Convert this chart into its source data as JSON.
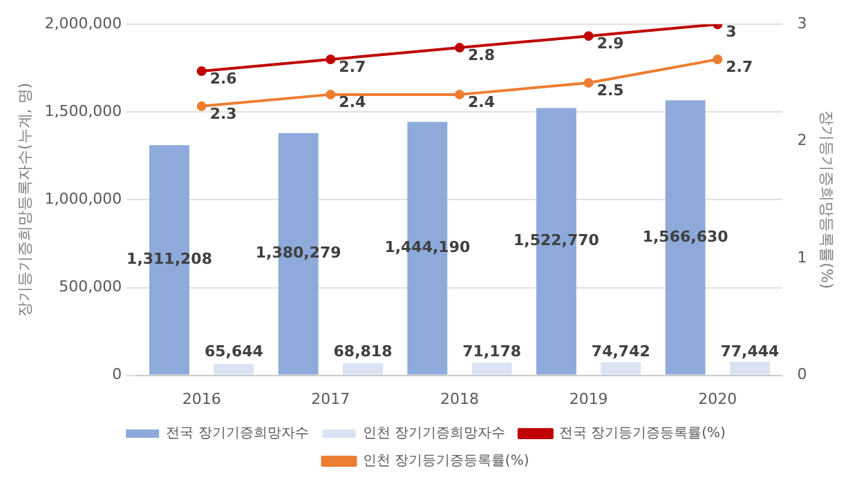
{
  "chart_data": {
    "type": "bar",
    "categories": [
      "2016",
      "2017",
      "2018",
      "2019",
      "2020"
    ],
    "ylabel": "장기등기증희망등록자수(누계, 명)",
    "y2label": "장기등기증희망등록률(%)",
    "series": [
      {
        "name": "전국 장기기증희망자수",
        "color": "#8eaadb",
        "values": [
          1311208,
          1380279,
          1444190,
          1522770,
          1566630
        ],
        "value_labels": [
          "1,311,208",
          "1,380,279",
          "1,444,190",
          "1,522,770",
          "1,566,630"
        ]
      },
      {
        "name": "인천 장기기증희망자수",
        "color": "#dae3f3",
        "values": [
          65644,
          68818,
          71178,
          74742,
          77444
        ],
        "value_labels": [
          "65,644",
          "68,818",
          "71,178",
          "74,742",
          "77,444"
        ]
      },
      {
        "name": "전국 장기등기증등록률(%)",
        "type": "line",
        "axis": "y2",
        "color": "#c00000",
        "values": [
          2.6,
          2.7,
          2.8,
          2.9,
          3
        ]
      },
      {
        "name": "인천 장기등기증등록률(%)",
        "type": "line",
        "axis": "y2",
        "color": "#ed7d31",
        "values": [
          2.3,
          2.4,
          2.4,
          2.5,
          2.7
        ]
      }
    ],
    "ylim": [
      0,
      2000000
    ],
    "yticks": [
      0,
      {
        "value": 500000,
        "label": "500,000"
      },
      {
        "value": 1000000,
        "label": "1,000,000"
      },
      {
        "value": 1500000,
        "label": "1,500,000"
      },
      {
        "value": 2000000,
        "label": "2,000,000"
      }
    ],
    "y2lim": [
      0,
      3
    ],
    "y2ticks": [
      0,
      1,
      2,
      3
    ],
    "grid": "y",
    "legend": "bottom",
    "marker": "circle",
    "data_labels": true
  }
}
